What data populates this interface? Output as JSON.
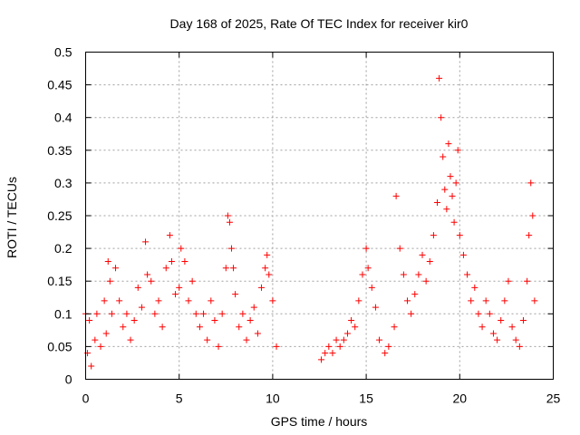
{
  "chart_data": {
    "type": "scatter",
    "title": "Day 168 of 2025, Rate Of TEC Index for receiver kir0",
    "xlabel": "GPS time / hours",
    "ylabel": "ROTI / TECUs",
    "xlim": [
      0,
      25
    ],
    "ylim": [
      0,
      0.5
    ],
    "xticks": [
      0,
      5,
      10,
      15,
      20,
      25
    ],
    "yticks": [
      0,
      0.05,
      0.1,
      0.15,
      0.2,
      0.25,
      0.3,
      0.35,
      0.4,
      0.45,
      0.5
    ],
    "x_tick_labels": [
      "0",
      "5",
      "10",
      "15",
      "20",
      "25"
    ],
    "y_tick_labels": [
      "0",
      "0.05",
      "0.1",
      "0.15",
      "0.2",
      "0.25",
      "0.3",
      "0.35",
      "0.4",
      "0.45",
      "0.5"
    ],
    "grid": true,
    "marker": "plus",
    "marker_color": "#ff0000",
    "series": [
      {
        "name": "ROTI",
        "points": [
          [
            0.0,
            0.1
          ],
          [
            0.1,
            0.04
          ],
          [
            0.2,
            0.09
          ],
          [
            0.3,
            0.02
          ],
          [
            0.5,
            0.06
          ],
          [
            0.6,
            0.1
          ],
          [
            0.8,
            0.05
          ],
          [
            1.0,
            0.12
          ],
          [
            1.1,
            0.07
          ],
          [
            1.2,
            0.18
          ],
          [
            1.3,
            0.15
          ],
          [
            1.4,
            0.1
          ],
          [
            1.6,
            0.17
          ],
          [
            1.8,
            0.12
          ],
          [
            2.0,
            0.08
          ],
          [
            2.2,
            0.1
          ],
          [
            2.4,
            0.06
          ],
          [
            2.6,
            0.09
          ],
          [
            2.8,
            0.14
          ],
          [
            3.0,
            0.11
          ],
          [
            3.2,
            0.21
          ],
          [
            3.3,
            0.16
          ],
          [
            3.5,
            0.15
          ],
          [
            3.7,
            0.1
          ],
          [
            3.9,
            0.12
          ],
          [
            4.1,
            0.08
          ],
          [
            4.3,
            0.17
          ],
          [
            4.5,
            0.22
          ],
          [
            4.6,
            0.18
          ],
          [
            4.8,
            0.13
          ],
          [
            5.0,
            0.14
          ],
          [
            5.1,
            0.2
          ],
          [
            5.3,
            0.18
          ],
          [
            5.5,
            0.12
          ],
          [
            5.7,
            0.15
          ],
          [
            5.9,
            0.1
          ],
          [
            6.1,
            0.08
          ],
          [
            6.3,
            0.1
          ],
          [
            6.5,
            0.06
          ],
          [
            6.7,
            0.12
          ],
          [
            6.9,
            0.09
          ],
          [
            7.1,
            0.05
          ],
          [
            7.3,
            0.1
          ],
          [
            7.5,
            0.17
          ],
          [
            7.6,
            0.25
          ],
          [
            7.7,
            0.24
          ],
          [
            7.8,
            0.2
          ],
          [
            7.9,
            0.17
          ],
          [
            8.0,
            0.13
          ],
          [
            8.2,
            0.08
          ],
          [
            8.4,
            0.1
          ],
          [
            8.6,
            0.06
          ],
          [
            8.8,
            0.09
          ],
          [
            9.0,
            0.11
          ],
          [
            9.2,
            0.07
          ],
          [
            9.4,
            0.14
          ],
          [
            9.6,
            0.17
          ],
          [
            9.7,
            0.19
          ],
          [
            9.8,
            0.16
          ],
          [
            10.0,
            0.12
          ],
          [
            10.2,
            0.05
          ],
          [
            12.6,
            0.03
          ],
          [
            12.8,
            0.04
          ],
          [
            13.0,
            0.05
          ],
          [
            13.2,
            0.04
          ],
          [
            13.4,
            0.06
          ],
          [
            13.6,
            0.05
          ],
          [
            13.8,
            0.06
          ],
          [
            14.0,
            0.07
          ],
          [
            14.2,
            0.09
          ],
          [
            14.4,
            0.08
          ],
          [
            14.6,
            0.12
          ],
          [
            14.8,
            0.16
          ],
          [
            15.0,
            0.2
          ],
          [
            15.1,
            0.17
          ],
          [
            15.3,
            0.14
          ],
          [
            15.5,
            0.11
          ],
          [
            15.7,
            0.06
          ],
          [
            16.0,
            0.04
          ],
          [
            16.2,
            0.05
          ],
          [
            16.5,
            0.08
          ],
          [
            16.6,
            0.28
          ],
          [
            16.8,
            0.2
          ],
          [
            17.0,
            0.16
          ],
          [
            17.2,
            0.12
          ],
          [
            17.4,
            0.1
          ],
          [
            17.6,
            0.13
          ],
          [
            17.8,
            0.16
          ],
          [
            18.0,
            0.19
          ],
          [
            18.2,
            0.15
          ],
          [
            18.4,
            0.18
          ],
          [
            18.6,
            0.22
          ],
          [
            18.8,
            0.27
          ],
          [
            18.9,
            0.46
          ],
          [
            19.0,
            0.4
          ],
          [
            19.1,
            0.34
          ],
          [
            19.2,
            0.29
          ],
          [
            19.3,
            0.26
          ],
          [
            19.4,
            0.36
          ],
          [
            19.5,
            0.31
          ],
          [
            19.6,
            0.28
          ],
          [
            19.7,
            0.24
          ],
          [
            19.8,
            0.3
          ],
          [
            19.9,
            0.35
          ],
          [
            20.0,
            0.22
          ],
          [
            20.2,
            0.19
          ],
          [
            20.4,
            0.16
          ],
          [
            20.6,
            0.12
          ],
          [
            20.8,
            0.14
          ],
          [
            21.0,
            0.1
          ],
          [
            21.2,
            0.08
          ],
          [
            21.4,
            0.12
          ],
          [
            21.6,
            0.1
          ],
          [
            21.8,
            0.07
          ],
          [
            22.0,
            0.06
          ],
          [
            22.2,
            0.09
          ],
          [
            22.4,
            0.12
          ],
          [
            22.6,
            0.15
          ],
          [
            22.8,
            0.08
          ],
          [
            23.0,
            0.06
          ],
          [
            23.2,
            0.05
          ],
          [
            23.4,
            0.09
          ],
          [
            23.6,
            0.15
          ],
          [
            23.7,
            0.22
          ],
          [
            23.8,
            0.3
          ],
          [
            23.9,
            0.25
          ],
          [
            24.0,
            0.12
          ]
        ]
      }
    ]
  }
}
